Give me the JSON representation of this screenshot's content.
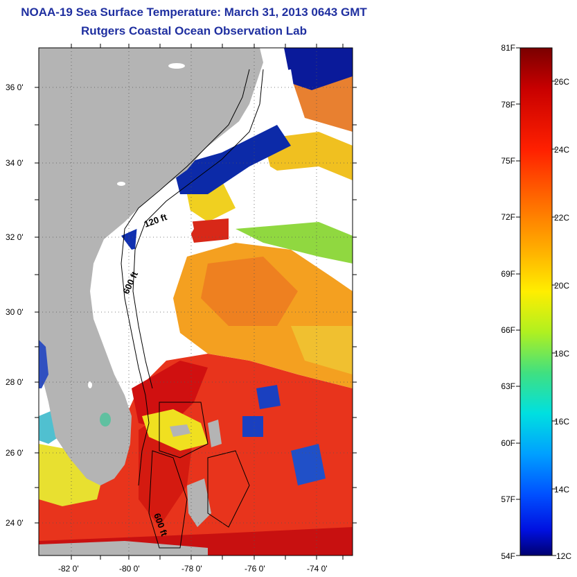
{
  "header": {
    "title": "NOAA-19 Sea Surface Temperature:  March 31, 2013 0643 GMT",
    "subtitle": "Rutgers Coastal Ocean Observation Lab"
  },
  "map": {
    "lat_ticks": [
      "36 0'",
      "34 0'",
      "32 0'",
      "30 0'",
      "28 0'",
      "26 0'",
      "24 0'"
    ],
    "lon_ticks": [
      "-82 0'",
      "-80 0'",
      "-78 0'",
      "-76 0'",
      "-74 0'"
    ],
    "contour_labels": [
      "120 ft",
      "600 ft",
      "600 ft"
    ],
    "colors": {
      "land": "#b4b4b4",
      "cloud": "#ffffff",
      "warm": "#e8341c",
      "hot": "#d01010",
      "orange": "#f4a020",
      "yellow": "#f0e020",
      "green": "#70d050",
      "cold": "#0a1a9a"
    }
  },
  "colorbar": {
    "fahrenheit": [
      "81F",
      "78F",
      "75F",
      "72F",
      "69F",
      "66F",
      "63F",
      "60F",
      "57F",
      "54F"
    ],
    "celsius": [
      "26C",
      "24C",
      "22C",
      "20C",
      "18C",
      "16C",
      "14C",
      "12C"
    ],
    "colors": [
      "#7a0000",
      "#c80000",
      "#ff2000",
      "#ff6a00",
      "#ffb000",
      "#ffee00",
      "#b0f020",
      "#40e080",
      "#00e0e0",
      "#00a0ff",
      "#0050ff",
      "#0010e0",
      "#000070"
    ]
  }
}
